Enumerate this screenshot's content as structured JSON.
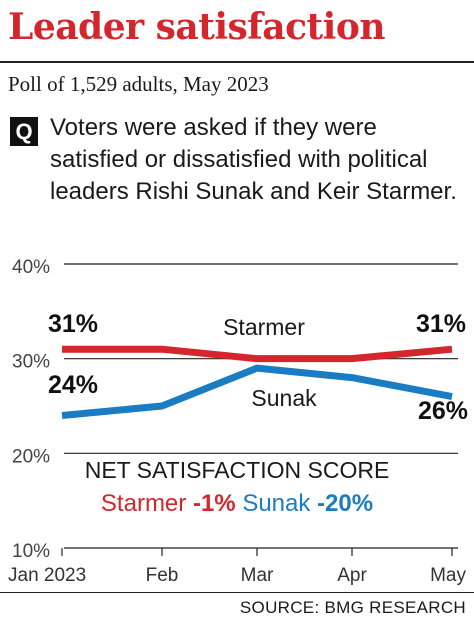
{
  "header": {
    "title": "Leader satisfaction",
    "subtitle": "Poll of 1,529 adults, May 2023",
    "q_badge": "Q",
    "question": "Voters were asked if they were satisfied or dissatisfied with political leaders Rishi Sunak and Keir Starmer."
  },
  "net_satisfaction": {
    "title": "NET SATISFACTION SCORE",
    "starmer_label": "Starmer",
    "starmer_value": "-1%",
    "sunak_label": "Sunak",
    "sunak_value": "-20%"
  },
  "source": "SOURCE: BMG RESEARCH",
  "colors": {
    "starmer": "#d4262c",
    "sunak": "#1a7dc4"
  },
  "chart_data": {
    "type": "line",
    "categories": [
      "Jan 2023",
      "Feb",
      "Mar",
      "Apr",
      "May"
    ],
    "y_tick_labels": [
      "40%",
      "30%",
      "20%",
      "10%"
    ],
    "y_ticks": [
      40,
      30,
      20,
      10
    ],
    "ylim": [
      10,
      40
    ],
    "series": [
      {
        "name": "Starmer",
        "values": [
          31,
          31,
          30,
          30,
          31
        ],
        "color": "#d4262c",
        "start_label": "31%",
        "end_label": "31%"
      },
      {
        "name": "Sunak",
        "values": [
          24,
          25,
          29,
          28,
          26
        ],
        "color": "#1a7dc4",
        "start_label": "24%",
        "end_label": "26%"
      }
    ],
    "grid": true
  }
}
